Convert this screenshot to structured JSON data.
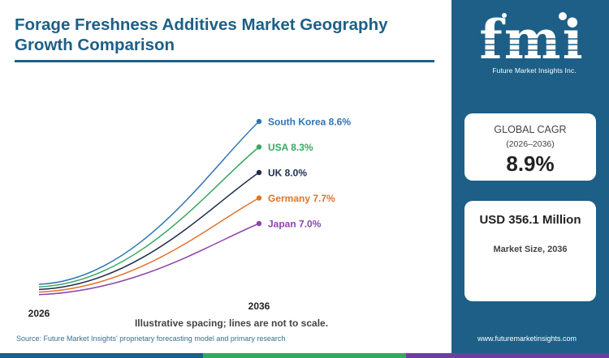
{
  "title": "Forage Freshness Additives Market Geography Growth Comparison",
  "note": "Illustrative spacing; lines are not to scale.",
  "source": "Source: Future Market Insights' proprietary forecasting model and primary research",
  "website": "www.futuremarketinsights.com",
  "brand": {
    "logo_text": "fmi",
    "tagline": "Future Market Insights Inc."
  },
  "cagr_card": {
    "label": "GLOBAL CAGR",
    "period": "(2026–2036)",
    "value": "8.9%"
  },
  "size_card": {
    "value": "USD 356.1 Million",
    "label": "Market Size, 2036"
  },
  "colors": {
    "brand_blue": "#1d5f86",
    "bottom_bar": [
      "#1d5f86",
      "#36a861",
      "#6b3fa0"
    ]
  },
  "chart_data": {
    "type": "line",
    "x": [
      "2026",
      "2036"
    ],
    "ylim": [
      0,
      1
    ],
    "y_axis_visible": false,
    "grid": false,
    "note": "Illustrative spacing; lines are not to scale.",
    "series": [
      {
        "name": "South Korea",
        "cagr": 8.6,
        "label": "South Korea 8.6%",
        "color": "#2e75b6",
        "end": 1.0
      },
      {
        "name": "USA",
        "cagr": 8.3,
        "label": "USA 8.3%",
        "color": "#36a861",
        "end": 0.85
      },
      {
        "name": "UK",
        "cagr": 8.0,
        "label": "UK 8.0%",
        "color": "#1f2d4d",
        "end": 0.7
      },
      {
        "name": "Germany",
        "cagr": 7.7,
        "label": "Germany 7.7%",
        "color": "#e0742b",
        "end": 0.55
      },
      {
        "name": "Japan",
        "cagr": 7.0,
        "label": "Japan 7.0%",
        "color": "#8e44ad",
        "end": 0.4
      }
    ]
  }
}
